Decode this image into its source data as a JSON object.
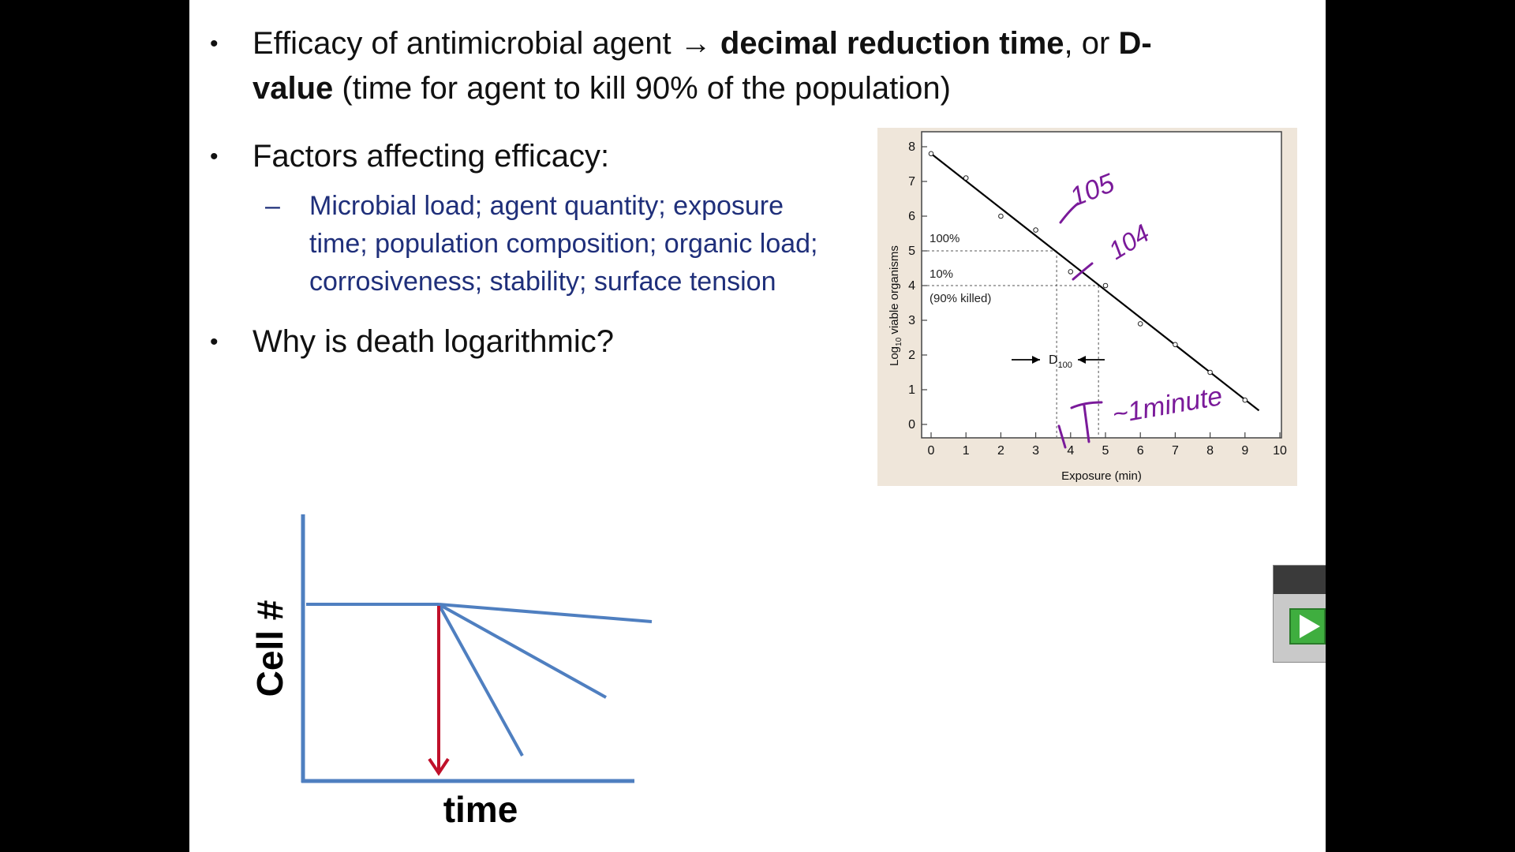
{
  "slide": {
    "bullet1": {
      "text_a": "Efficacy of antimicrobial agent ",
      "arrow": "→",
      "bold_a": " decimal reduction time",
      "text_b": ", or ",
      "bold_b": "D-",
      "bold_c": "value",
      "text_c": " (time for agent  to kill  90% of the population)"
    },
    "bullet2": {
      "text": "Factors affecting efficacy:",
      "dash": "–",
      "sub_line1": "Microbial load; agent quantity;  exposure",
      "sub_line2": "time; population composition; organic load;",
      "sub_line3": "corrosiveness; stability; surface tension"
    },
    "bullet3": {
      "text": "Why is death logarithmic?"
    },
    "bullet_char": "•"
  },
  "graph_figure": {
    "ylabel": "Log10 viable organisms",
    "ylabel_main": "Log",
    "ylabel_sub": "10",
    "ylabel_rest": " viable organisms",
    "xlabel": "Exposure (min)",
    "x_ticks": [
      "0",
      "1",
      "2",
      "3",
      "4",
      "5",
      "6",
      "7",
      "8",
      "9",
      "10"
    ],
    "y_ticks": [
      "0",
      "1",
      "2",
      "3",
      "4",
      "5",
      "6",
      "7",
      "8"
    ],
    "label_100": "100%",
    "label_10": "10%",
    "label_killed": "(90% killed)",
    "d_label": "D",
    "d_sub": "100",
    "points": [
      [
        0,
        7.8
      ],
      [
        1,
        7.1
      ],
      [
        2,
        6.0
      ],
      [
        3,
        5.6
      ],
      [
        4,
        4.4
      ],
      [
        5,
        4.0
      ],
      [
        6,
        2.9
      ],
      [
        7,
        2.3
      ],
      [
        8,
        1.5
      ],
      [
        9,
        0.7
      ]
    ],
    "line": [
      [
        0,
        7.8
      ],
      [
        9.4,
        0.4
      ]
    ],
    "ref_levels": [
      5,
      4
    ],
    "ref_times": [
      3.6,
      4.8
    ],
    "annotations": {
      "a1": "105",
      "a2": "104",
      "a3": "~1minute"
    }
  },
  "cell_figure": {
    "ylabel": "Cell #",
    "xlabel": "time"
  },
  "colors": {
    "sub_text": "#1f2f7a",
    "ink": "#7a1a9a",
    "axis_blue": "#4f7fc0",
    "arrow_red": "#c0102a"
  }
}
